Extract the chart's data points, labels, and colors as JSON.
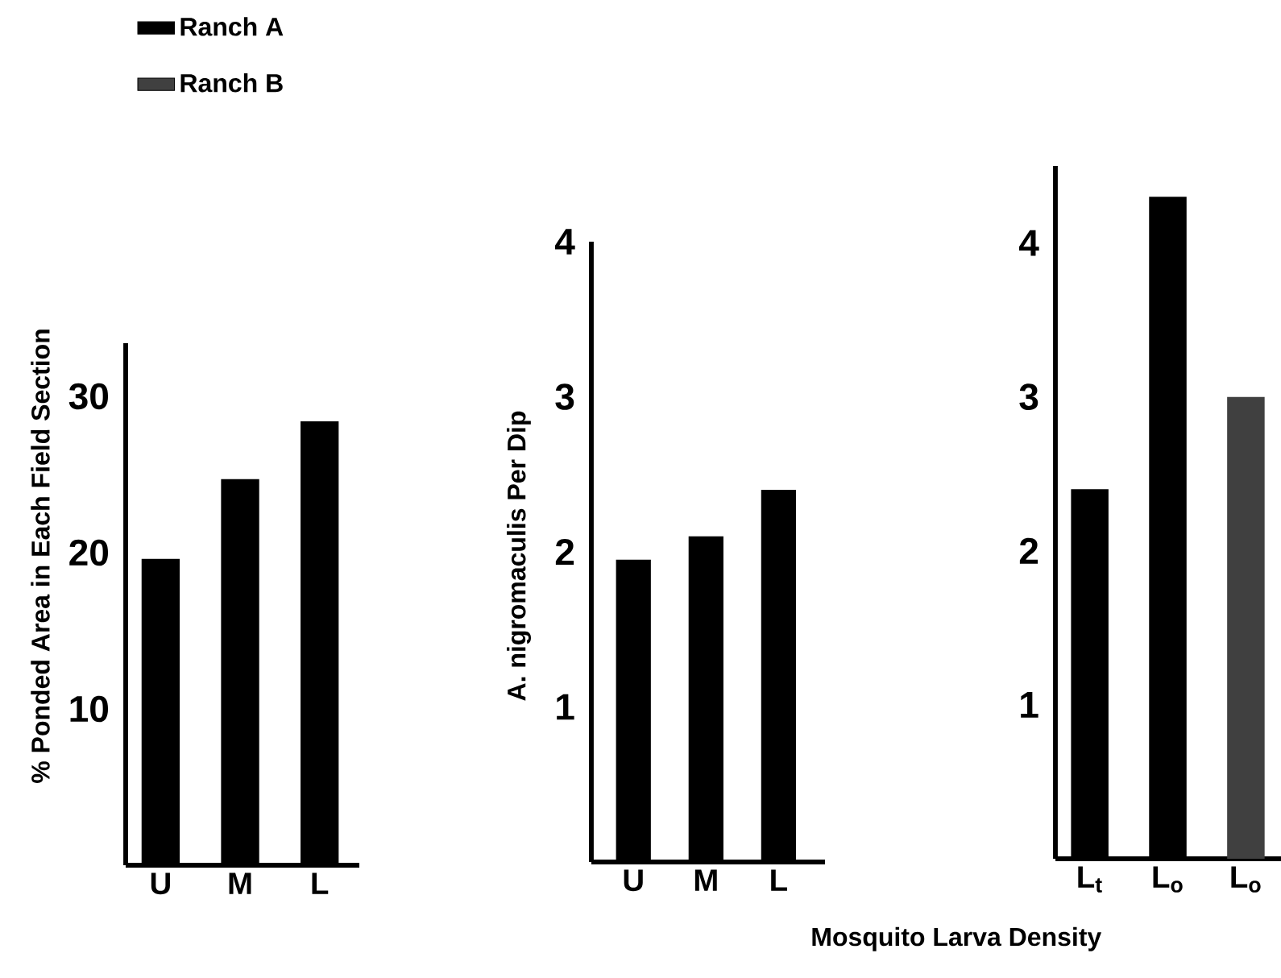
{
  "chart_data": [
    {
      "type": "bar",
      "ylabel": "% Ponded Area in Each Field Section",
      "categories": [
        "U",
        "M",
        "L"
      ],
      "values": [
        19.6,
        24.7,
        28.4
      ],
      "color": "#000000",
      "ylim": [
        0,
        33.4
      ],
      "yticks": [
        10,
        20,
        30
      ],
      "grid": false
    },
    {
      "type": "bar",
      "ylabel": "A. nigromaculis Per Dip",
      "categories": [
        "U",
        "M",
        "L"
      ],
      "values": [
        1.95,
        2.1,
        2.4
      ],
      "color": "#000000",
      "ylim": [
        0,
        4
      ],
      "yticks": [
        1,
        2,
        3,
        4
      ],
      "grid": false
    },
    {
      "type": "bar",
      "xlabel": "Mosquito Larva Density",
      "categories": [
        "L$_{t}$",
        "L$_{o}$",
        "L$_{o}$"
      ],
      "series": [
        {
          "name": "Ranch A",
          "color": "#000000",
          "values": [
            2.4,
            4.3,
            null
          ]
        },
        {
          "name": "Ranch B",
          "color": "#404040",
          "values": [
            null,
            null,
            3.0
          ]
        }
      ],
      "ylim": [
        0,
        4.5
      ],
      "yticks": [
        1,
        2,
        3,
        4
      ],
      "grid": false,
      "legend": "top left"
    }
  ]
}
